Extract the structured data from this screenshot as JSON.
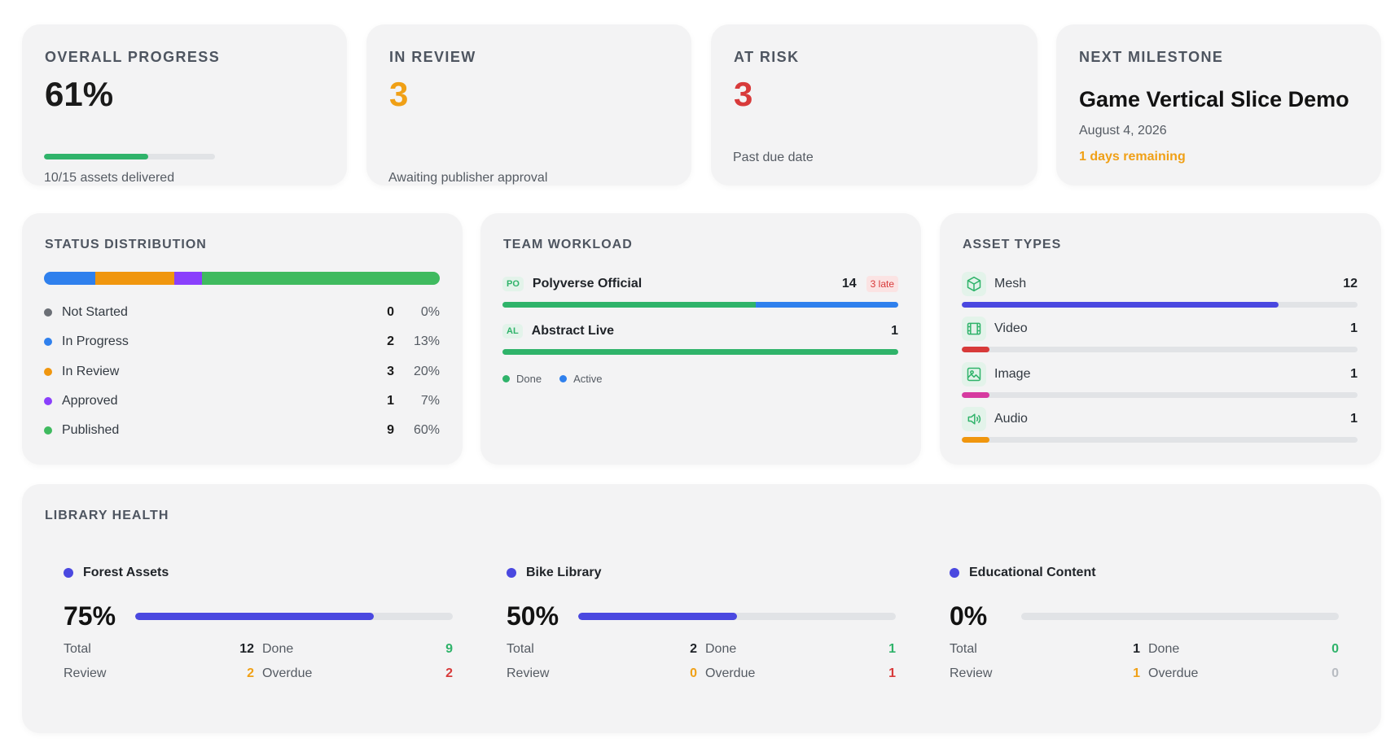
{
  "colors": {
    "green": "#2fb36a",
    "orange": "#f0a016",
    "red": "#d83a3a",
    "blue": "#2f80ed",
    "purple": "#8a3ffc",
    "gray": "#6b6f76",
    "indigo": "#4a48e0"
  },
  "kpis": {
    "overall": {
      "title": "OVERALL PROGRESS",
      "value": "61%",
      "progress": 0.61,
      "sub": "10/15 assets delivered"
    },
    "review": {
      "title": "IN REVIEW",
      "value": "3",
      "sub": "Awaiting publisher approval"
    },
    "risk": {
      "title": "AT RISK",
      "value": "3",
      "sub": "Past due date"
    },
    "milestone": {
      "title": "NEXT MILESTONE",
      "name": "Game Vertical Slice Demo",
      "date": "August 4, 2026",
      "remaining": "1 days remaining"
    }
  },
  "status_distribution": {
    "title": "STATUS DISTRIBUTION",
    "rows": [
      {
        "label": "Not Started",
        "count": "0",
        "pct": "0%",
        "fraction": 0.0,
        "color": "#6b6f76"
      },
      {
        "label": "In Progress",
        "count": "2",
        "pct": "13%",
        "fraction": 0.13,
        "color": "#2f80ed"
      },
      {
        "label": "In Review",
        "count": "3",
        "pct": "20%",
        "fraction": 0.2,
        "color": "#f0960e"
      },
      {
        "label": "Approved",
        "count": "1",
        "pct": "7%",
        "fraction": 0.07,
        "color": "#8a3ffc"
      },
      {
        "label": "Published",
        "count": "9",
        "pct": "60%",
        "fraction": 0.6,
        "color": "#3fba5f"
      }
    ]
  },
  "team_workload": {
    "title": "TEAM WORKLOAD",
    "members": [
      {
        "initials": "PO",
        "name": "Polyverse Official",
        "count": "14",
        "late": "3 late",
        "done_fraction": 0.64,
        "active_fraction": 0.36
      },
      {
        "initials": "AL",
        "name": "Abstract Live",
        "count": "1",
        "late": "",
        "done_fraction": 1.0,
        "active_fraction": 0.0
      }
    ],
    "legend": {
      "done": "Done",
      "active": "Active"
    }
  },
  "asset_types": {
    "title": "ASSET TYPES",
    "items": [
      {
        "icon": "cube-icon",
        "name": "Mesh",
        "count": "12",
        "fraction": 0.8,
        "color": "#4a48e0"
      },
      {
        "icon": "film-icon",
        "name": "Video",
        "count": "1",
        "fraction": 0.07,
        "color": "#d83a3a"
      },
      {
        "icon": "image-icon",
        "name": "Image",
        "count": "1",
        "fraction": 0.07,
        "color": "#d63aa0"
      },
      {
        "icon": "speaker-icon",
        "name": "Audio",
        "count": "1",
        "fraction": 0.07,
        "color": "#f0960e"
      }
    ]
  },
  "library_health": {
    "title": "LIBRARY HEALTH",
    "labels": {
      "total": "Total",
      "done": "Done",
      "review": "Review",
      "overdue": "Overdue"
    },
    "libraries": [
      {
        "name": "Forest Assets",
        "pct": "75%",
        "fraction": 0.75,
        "total": "12",
        "done": "9",
        "review": "2",
        "overdue": "2"
      },
      {
        "name": "Bike Library",
        "pct": "50%",
        "fraction": 0.5,
        "total": "2",
        "done": "1",
        "review": "0",
        "overdue": "1"
      },
      {
        "name": "Educational Content",
        "pct": "0%",
        "fraction": 0.0,
        "total": "1",
        "done": "0",
        "review": "1",
        "overdue": "0"
      }
    ]
  }
}
